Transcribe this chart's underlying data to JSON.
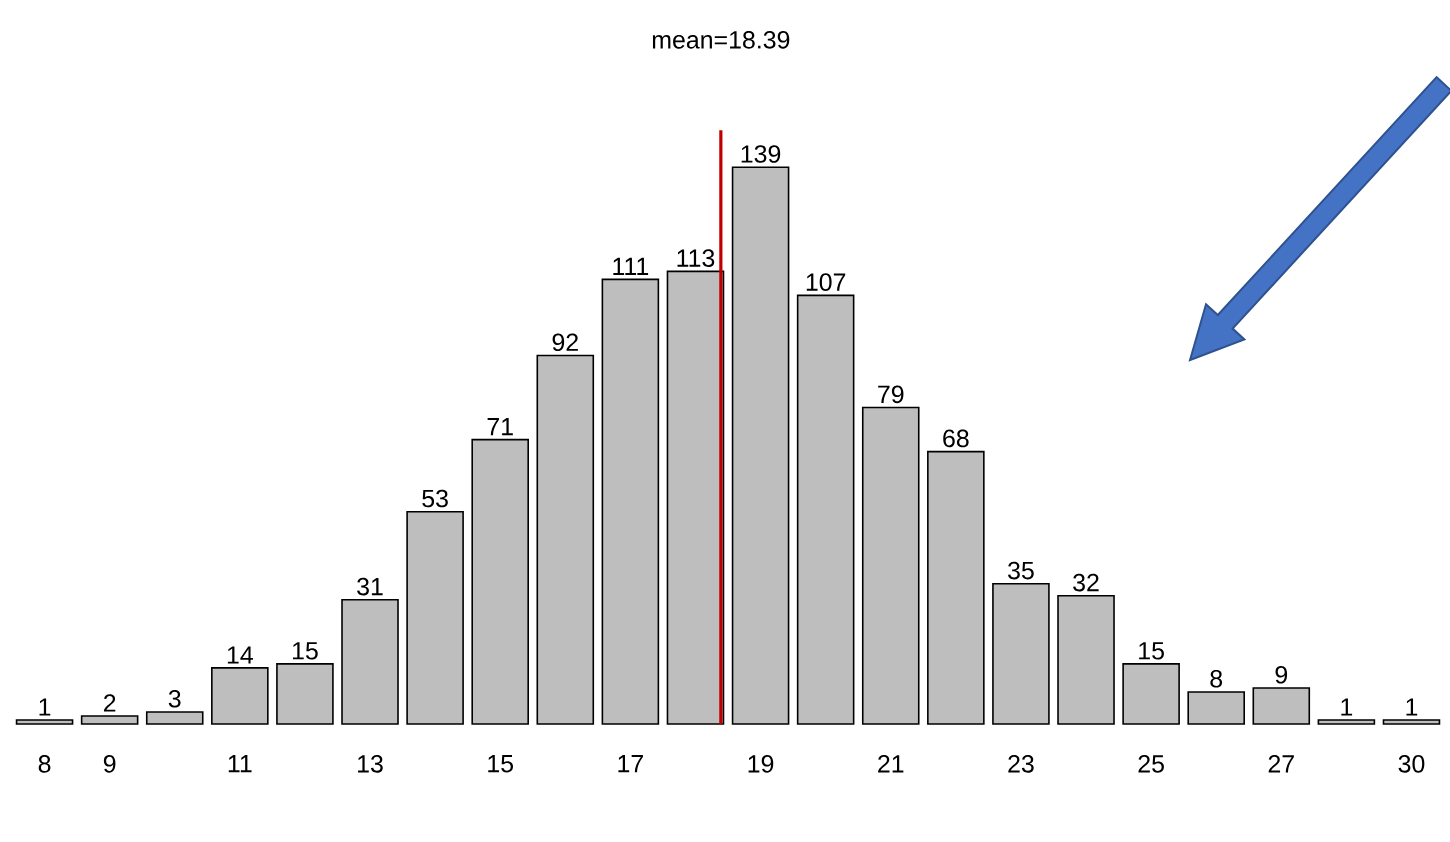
{
  "chart_data": {
    "type": "bar",
    "categories": [
      "8",
      "9",
      null,
      "11",
      null,
      "13",
      null,
      "15",
      null,
      "17",
      null,
      "19",
      null,
      "21",
      null,
      "23",
      null,
      "25",
      null,
      "27",
      null,
      "30"
    ],
    "values": [
      1,
      2,
      3,
      14,
      15,
      31,
      53,
      71,
      92,
      111,
      113,
      139,
      107,
      79,
      68,
      35,
      32,
      15,
      8,
      9,
      1,
      1
    ],
    "color": "#bebebe",
    "data_labels": true,
    "tick_labels": "x",
    "annotations": [
      "mean=18.39"
    ]
  }
}
